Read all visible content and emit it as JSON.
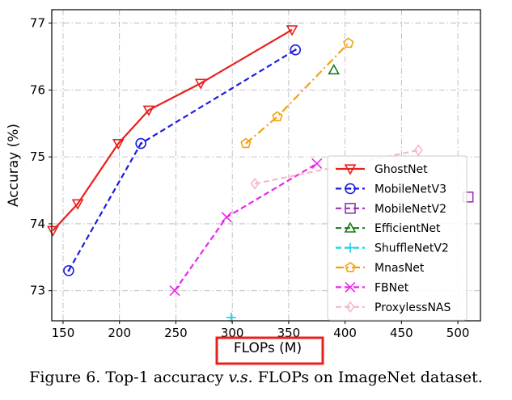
{
  "caption": {
    "prefix": "Figure 6. Top-1 accuracy ",
    "italic": "v.s.",
    "suffix": " FLOPs on ImageNet dataset."
  },
  "chart_data": {
    "type": "line",
    "xlabel": "FLOPs (M)",
    "ylabel": "Accuray (%)",
    "xlim": [
      140,
      520
    ],
    "ylim": [
      72.55,
      77.2
    ],
    "xticks": [
      150,
      200,
      250,
      300,
      350,
      400,
      450,
      500
    ],
    "yticks": [
      73,
      74,
      75,
      76,
      77
    ],
    "grid": true,
    "legend_position": "lower-right",
    "xlabel_highlight_color": "#e8201e",
    "series": [
      {
        "name": "GhostNet",
        "color": "#e8201e",
        "marker": "triangle-down",
        "linestyle": "solid",
        "x": [
          141,
          163,
          199,
          226,
          272,
          353
        ],
        "y": [
          73.9,
          74.3,
          75.2,
          75.7,
          76.1,
          76.9
        ]
      },
      {
        "name": "MobileNetV3",
        "color": "#1d1de0",
        "marker": "circle",
        "linestyle": "dashed",
        "x": [
          155,
          219,
          356
        ],
        "y": [
          73.3,
          75.2,
          76.6
        ]
      },
      {
        "name": "MobileNetV2",
        "color": "#9a31b3",
        "marker": "square",
        "linestyle": "dashed",
        "x": [
          509
        ],
        "y": [
          74.4
        ]
      },
      {
        "name": "EfficientNet",
        "color": "#1b7a1b",
        "marker": "triangle-up",
        "linestyle": "dashed",
        "x": [
          390
        ],
        "y": [
          76.3
        ]
      },
      {
        "name": "ShuffleNetV2",
        "color": "#17d2e6",
        "marker": "plus",
        "linestyle": "dashed",
        "x": [
          299
        ],
        "y": [
          72.6
        ]
      },
      {
        "name": "MnasNet",
        "color": "#f5a10e",
        "marker": "pentagon",
        "linestyle": "dashdot",
        "x": [
          312,
          340,
          403
        ],
        "y": [
          75.2,
          75.6,
          76.7
        ]
      },
      {
        "name": "FBNet",
        "color": "#ee25ee",
        "marker": "x",
        "linestyle": "dashed",
        "x": [
          249,
          295,
          375
        ],
        "y": [
          73.0,
          74.1,
          74.9
        ]
      },
      {
        "name": "ProxylessNAS",
        "color": "#f5b9c9",
        "marker": "diamond",
        "linestyle": "dashed",
        "x": [
          320,
          465
        ],
        "y": [
          74.6,
          75.1
        ]
      }
    ]
  }
}
